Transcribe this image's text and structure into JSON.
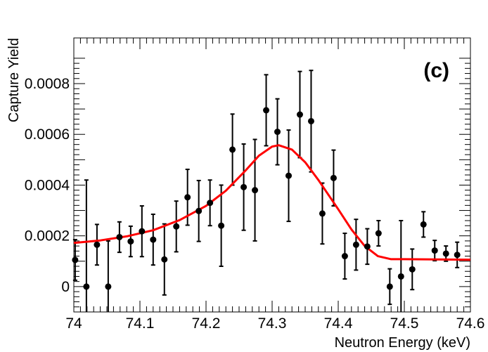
{
  "chart_data": {
    "type": "scatter",
    "title": "",
    "panel_label": "(c)",
    "xlabel": "Neutron Energy (keV)",
    "ylabel": "Capture Yield",
    "xlim": [
      74.0,
      74.6
    ],
    "ylim": [
      -0.0001,
      0.00098
    ],
    "xticks": [
      74.0,
      74.1,
      74.2,
      74.3,
      74.4,
      74.5,
      74.6
    ],
    "xtick_labels": [
      "74",
      "74.1",
      "74.2",
      "74.3",
      "74.4",
      "74.5",
      "74.6"
    ],
    "yticks": [
      0,
      0.0002,
      0.0004,
      0.0006,
      0.0008
    ],
    "ytick_labels": [
      "0",
      "0.0002",
      "0.0004",
      "0.0006",
      "0.0008"
    ],
    "grid": false,
    "legend": "none",
    "colors": {
      "data": "#000000",
      "fit": "#ff0000",
      "frame": "#000000"
    },
    "series": [
      {
        "type": "scatter-errorbars",
        "points": [
          {
            "x": 74.002,
            "y": 0.000105,
            "err": 8e-05
          },
          {
            "x": 74.019,
            "y": 0.0,
            "err": 0.00042
          },
          {
            "x": 74.035,
            "y": 0.000165,
            "err": 8e-05
          },
          {
            "x": 74.052,
            "y": 0.0,
            "err": 0.00018
          },
          {
            "x": 74.069,
            "y": 0.000195,
            "err": 6e-05
          },
          {
            "x": 74.086,
            "y": 0.000178,
            "err": 6e-05
          },
          {
            "x": 74.103,
            "y": 0.000218,
            "err": 0.0001
          },
          {
            "x": 74.12,
            "y": 0.000185,
            "err": 0.0001
          },
          {
            "x": 74.137,
            "y": 0.000107,
            "err": 0.00014
          },
          {
            "x": 74.155,
            "y": 0.000237,
            "err": 0.0001
          },
          {
            "x": 74.172,
            "y": 0.000352,
            "err": 0.00011
          },
          {
            "x": 74.189,
            "y": 0.000298,
            "err": 0.00012
          },
          {
            "x": 74.206,
            "y": 0.00033,
            "err": 9e-05
          },
          {
            "x": 74.223,
            "y": 0.00024,
            "err": 0.00016
          },
          {
            "x": 74.24,
            "y": 0.00054,
            "err": 0.00014
          },
          {
            "x": 74.257,
            "y": 0.000392,
            "err": 0.00017
          },
          {
            "x": 74.274,
            "y": 0.00038,
            "err": 0.0002
          },
          {
            "x": 74.291,
            "y": 0.000695,
            "err": 0.00014
          },
          {
            "x": 74.308,
            "y": 0.00061,
            "err": 0.00013
          },
          {
            "x": 74.325,
            "y": 0.000437,
            "err": 0.00018
          },
          {
            "x": 74.342,
            "y": 0.000678,
            "err": 0.00017
          },
          {
            "x": 74.359,
            "y": 0.000652,
            "err": 0.0002
          },
          {
            "x": 74.376,
            "y": 0.000288,
            "err": 0.00012
          },
          {
            "x": 74.393,
            "y": 0.000428,
            "err": 0.00011
          },
          {
            "x": 74.41,
            "y": 0.00012,
            "err": 9e-05
          },
          {
            "x": 74.427,
            "y": 0.000165,
            "err": 0.0001
          },
          {
            "x": 74.444,
            "y": 0.000158,
            "err": 7e-05
          },
          {
            "x": 74.461,
            "y": 0.00021,
            "err": 5e-05
          },
          {
            "x": 74.478,
            "y": 0.0,
            "err": 7e-05
          },
          {
            "x": 74.495,
            "y": 4e-05,
            "err": 0.00022
          },
          {
            "x": 74.512,
            "y": 6.8e-05,
            "err": 8e-05
          },
          {
            "x": 74.529,
            "y": 0.000245,
            "err": 5e-05
          },
          {
            "x": 74.546,
            "y": 0.000142,
            "err": 4e-05
          },
          {
            "x": 74.563,
            "y": 0.00013,
            "err": 3e-05
          },
          {
            "x": 74.58,
            "y": 0.000125,
            "err": 5e-05
          }
        ]
      },
      {
        "type": "line",
        "points": [
          [
            74.0,
            0.000172
          ],
          [
            74.04,
            0.000182
          ],
          [
            74.08,
            0.000198
          ],
          [
            74.12,
            0.000222
          ],
          [
            74.16,
            0.000262
          ],
          [
            74.2,
            0.000318
          ],
          [
            74.23,
            0.000378
          ],
          [
            74.26,
            0.000458
          ],
          [
            74.28,
            0.000516
          ],
          [
            74.3,
            0.000552
          ],
          [
            74.31,
            0.000557
          ],
          [
            74.33,
            0.00054
          ],
          [
            74.35,
            0.00049
          ],
          [
            74.37,
            0.00042
          ],
          [
            74.4,
            0.000305
          ],
          [
            74.42,
            0.000225
          ],
          [
            74.44,
            0.00016
          ],
          [
            74.46,
            0.00012
          ],
          [
            74.48,
            0.000108
          ],
          [
            74.5,
            0.000108
          ],
          [
            74.6,
            0.000106
          ]
        ]
      }
    ]
  }
}
